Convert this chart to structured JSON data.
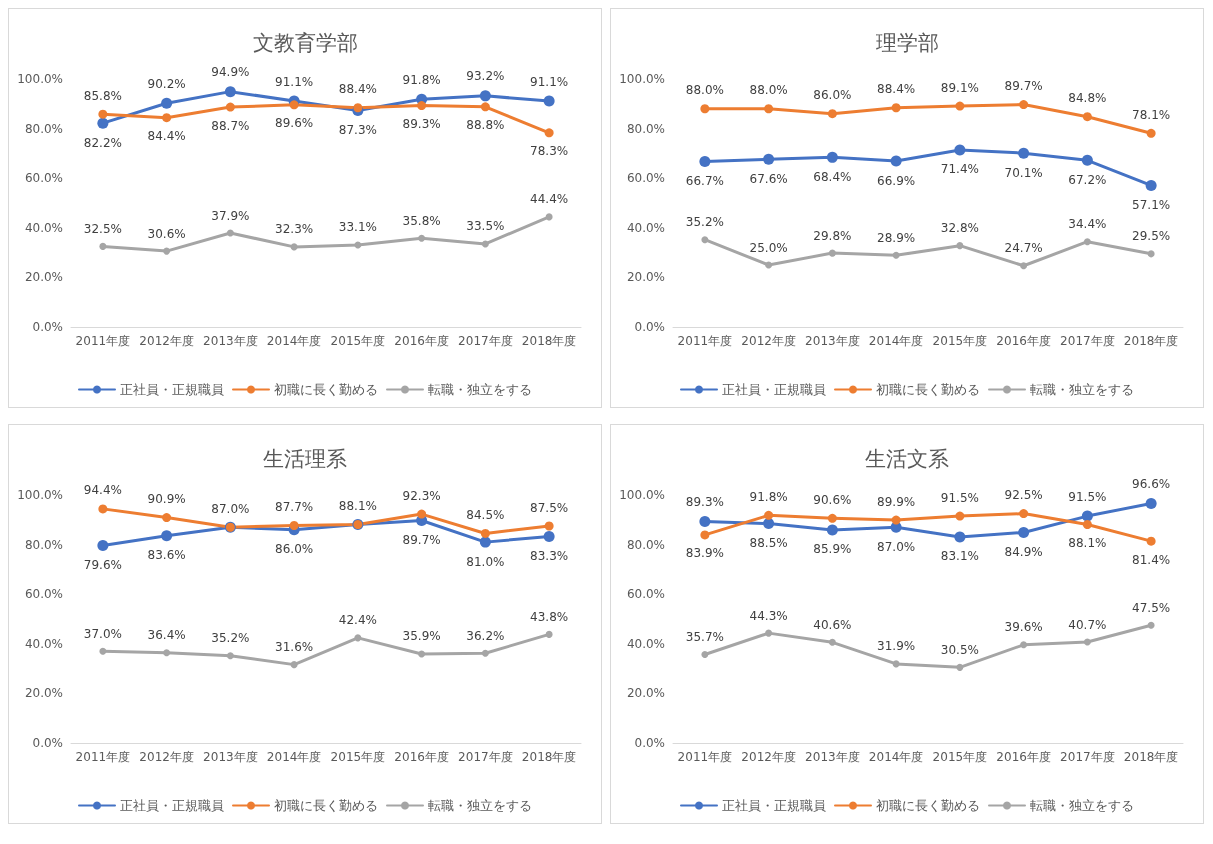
{
  "chart_data": [
    {
      "type": "line",
      "title": "文教育学部",
      "categories": [
        "2011年度",
        "2012年度",
        "2013年度",
        "2014年度",
        "2015年度",
        "2016年度",
        "2017年度",
        "2018年度"
      ],
      "ylim": [
        0,
        100
      ],
      "yticks": [
        {
          "value": 0,
          "label": "0.0%"
        },
        {
          "value": 20,
          "label": "20.0%"
        },
        {
          "value": 40,
          "label": "40.0%"
        },
        {
          "value": 60,
          "label": "60.0%"
        },
        {
          "value": 80,
          "label": "80.0%"
        },
        {
          "value": 100,
          "label": "100.0%"
        }
      ],
      "grid": false,
      "legend": "bottom",
      "marker": "circle",
      "series": [
        {
          "name": "正社員・正規職員",
          "color": "#4472c4",
          "values": [
            82.2,
            90.2,
            94.9,
            91.1,
            87.3,
            91.8,
            93.2,
            91.1
          ],
          "value_labels": [
            "82.2%",
            "90.2%",
            "94.9%",
            "91.1%",
            "87.3%",
            "91.8%",
            "93.2%",
            "91.1%"
          ]
        },
        {
          "name": "初職に長く勤める",
          "color": "#ed7d31",
          "values": [
            85.8,
            84.4,
            88.7,
            89.6,
            88.4,
            89.3,
            88.8,
            78.3
          ],
          "value_labels": [
            "85.8%",
            "84.4%",
            "88.7%",
            "89.6%",
            "88.4%",
            "89.3%",
            "88.8%",
            "78.3%"
          ]
        },
        {
          "name": "転職・独立をする",
          "color": "#a5a5a5",
          "values": [
            32.5,
            30.6,
            37.9,
            32.3,
            33.1,
            35.8,
            33.5,
            44.4
          ],
          "value_labels": [
            "32.5%",
            "30.6%",
            "37.9%",
            "32.3%",
            "33.1%",
            "35.8%",
            "33.5%",
            "44.4%"
          ]
        }
      ]
    },
    {
      "type": "line",
      "title": "理学部",
      "categories": [
        "2011年度",
        "2012年度",
        "2013年度",
        "2014年度",
        "2015年度",
        "2016年度",
        "2017年度",
        "2018年度"
      ],
      "ylim": [
        0,
        100
      ],
      "yticks": [
        {
          "value": 0,
          "label": "0.0%"
        },
        {
          "value": 20,
          "label": "20.0%"
        },
        {
          "value": 40,
          "label": "40.0%"
        },
        {
          "value": 60,
          "label": "60.0%"
        },
        {
          "value": 80,
          "label": "80.0%"
        },
        {
          "value": 100,
          "label": "100.0%"
        }
      ],
      "grid": false,
      "legend": "bottom",
      "marker": "circle",
      "series": [
        {
          "name": "正社員・正規職員",
          "color": "#4472c4",
          "values": [
            66.7,
            67.6,
            68.4,
            66.9,
            71.4,
            70.1,
            67.2,
            57.1
          ],
          "value_labels": [
            "66.7%",
            "67.6%",
            "68.4%",
            "66.9%",
            "71.4%",
            "70.1%",
            "67.2%",
            "57.1%"
          ]
        },
        {
          "name": "初職に長く勤める",
          "color": "#ed7d31",
          "values": [
            88.0,
            88.0,
            86.0,
            88.4,
            89.1,
            89.7,
            84.8,
            78.1
          ],
          "value_labels": [
            "88.0%",
            "88.0%",
            "86.0%",
            "88.4%",
            "89.1%",
            "89.7%",
            "84.8%",
            "78.1%"
          ]
        },
        {
          "name": "転職・独立をする",
          "color": "#a5a5a5",
          "values": [
            35.2,
            25.0,
            29.8,
            28.9,
            32.8,
            24.7,
            34.4,
            29.5
          ],
          "value_labels": [
            "35.2%",
            "25.0%",
            "29.8%",
            "28.9%",
            "32.8%",
            "24.7%",
            "34.4%",
            "29.5%"
          ]
        }
      ]
    },
    {
      "type": "line",
      "title": "生活理系",
      "categories": [
        "2011年度",
        "2012年度",
        "2013年度",
        "2014年度",
        "2015年度",
        "2016年度",
        "2017年度",
        "2018年度"
      ],
      "ylim": [
        0,
        100
      ],
      "yticks": [
        {
          "value": 0,
          "label": "0.0%"
        },
        {
          "value": 20,
          "label": "20.0%"
        },
        {
          "value": 40,
          "label": "40.0%"
        },
        {
          "value": 60,
          "label": "60.0%"
        },
        {
          "value": 80,
          "label": "80.0%"
        },
        {
          "value": 100,
          "label": "100.0%"
        }
      ],
      "grid": false,
      "legend": "bottom",
      "marker": "circle",
      "series": [
        {
          "name": "正社員・正規職員",
          "color": "#4472c4",
          "values": [
            79.6,
            83.6,
            87.0,
            86.0,
            88.1,
            89.7,
            81.0,
            83.3
          ],
          "value_labels": [
            "79.6%",
            "83.6%",
            null,
            "86.0%",
            null,
            "89.7%",
            "81.0%",
            "83.3%"
          ]
        },
        {
          "name": "初職に長く勤める",
          "color": "#ed7d31",
          "values": [
            94.4,
            90.9,
            87.0,
            87.7,
            88.1,
            92.3,
            84.5,
            87.5
          ],
          "value_labels": [
            "94.4%",
            "90.9%",
            "87.0%",
            "87.7%",
            "88.1%",
            "92.3%",
            "84.5%",
            "87.5%"
          ]
        },
        {
          "name": "転職・独立をする",
          "color": "#a5a5a5",
          "values": [
            37.0,
            36.4,
            35.2,
            31.6,
            42.4,
            35.9,
            36.2,
            43.8
          ],
          "value_labels": [
            "37.0%",
            "36.4%",
            "35.2%",
            "31.6%",
            "42.4%",
            "35.9%",
            "36.2%",
            "43.8%"
          ]
        }
      ]
    },
    {
      "type": "line",
      "title": "生活文系",
      "categories": [
        "2011年度",
        "2012年度",
        "2013年度",
        "2014年度",
        "2015年度",
        "2016年度",
        "2017年度",
        "2018年度"
      ],
      "ylim": [
        0,
        100
      ],
      "yticks": [
        {
          "value": 0,
          "label": "0.0%"
        },
        {
          "value": 20,
          "label": "20.0%"
        },
        {
          "value": 40,
          "label": "40.0%"
        },
        {
          "value": 60,
          "label": "60.0%"
        },
        {
          "value": 80,
          "label": "80.0%"
        },
        {
          "value": 100,
          "label": "100.0%"
        }
      ],
      "grid": false,
      "legend": "bottom",
      "marker": "circle",
      "series": [
        {
          "name": "正社員・正規職員",
          "color": "#4472c4",
          "values": [
            89.3,
            88.5,
            85.9,
            87.0,
            83.1,
            84.9,
            91.5,
            96.6
          ],
          "value_labels": [
            "89.3%",
            "88.5%",
            "85.9%",
            "87.0%",
            "83.1%",
            "84.9%",
            "91.5%",
            "96.6%"
          ]
        },
        {
          "name": "初職に長く勤める",
          "color": "#ed7d31",
          "values": [
            83.9,
            91.8,
            90.6,
            89.9,
            91.5,
            92.5,
            88.1,
            81.4
          ],
          "value_labels": [
            "83.9%",
            "91.8%",
            "90.6%",
            "89.9%",
            "91.5%",
            "92.5%",
            "88.1%",
            "81.4%"
          ]
        },
        {
          "name": "転職・独立をする",
          "color": "#a5a5a5",
          "values": [
            35.7,
            44.3,
            40.6,
            31.9,
            30.5,
            39.6,
            40.7,
            47.5
          ],
          "value_labels": [
            "35.7%",
            "44.3%",
            "40.6%",
            "31.9%",
            "30.5%",
            "39.6%",
            "40.7%",
            "47.5%"
          ]
        }
      ]
    }
  ]
}
